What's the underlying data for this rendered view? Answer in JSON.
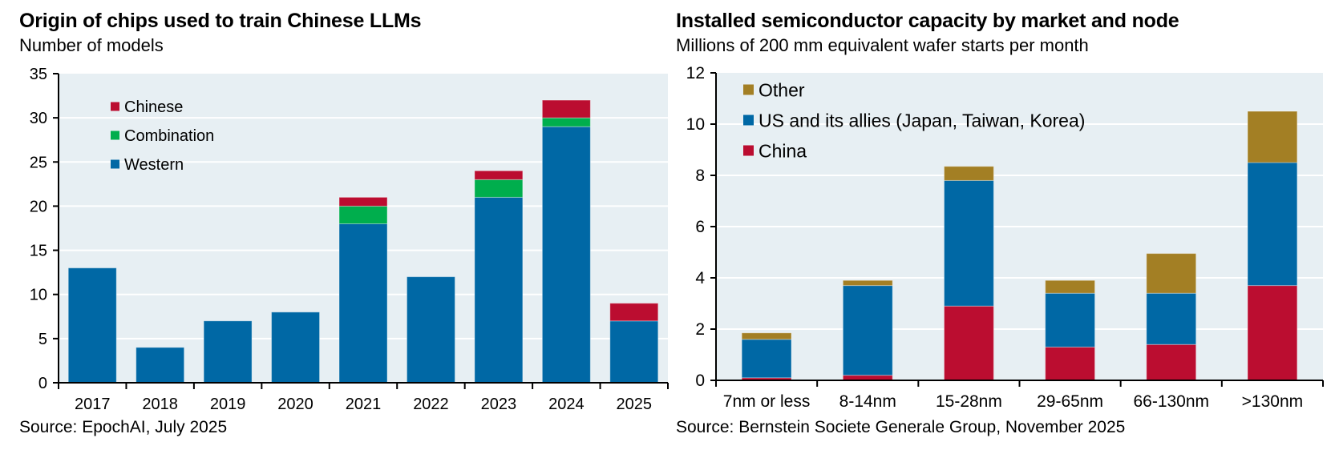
{
  "chart_data": [
    {
      "type": "bar",
      "stacked": true,
      "title": "Origin of chips used to train Chinese LLMs",
      "subtitle": "Number of models",
      "source": "Source: EpochAI, July 2025",
      "xlabel": "",
      "ylabel": "Number of models",
      "ylim": [
        0,
        35
      ],
      "yticks": [
        0,
        5,
        10,
        15,
        20,
        25,
        30,
        35
      ],
      "grid": true,
      "legend_position": "top-left",
      "categories": [
        "2017",
        "2018",
        "2019",
        "2020",
        "2021",
        "2022",
        "2023",
        "2024",
        "2025"
      ],
      "series": [
        {
          "name": "Western",
          "color": "#0068A5",
          "values": [
            13,
            4,
            7,
            8,
            18,
            12,
            21,
            29,
            7
          ]
        },
        {
          "name": "Combination",
          "color": "#00AE4D",
          "values": [
            0,
            0,
            0,
            0,
            2,
            0,
            2,
            1,
            0
          ]
        },
        {
          "name": "Chinese",
          "color": "#BB0D30",
          "values": [
            0,
            0,
            0,
            0,
            1,
            0,
            1,
            2,
            2
          ]
        }
      ],
      "legend_order": [
        "Chinese",
        "Combination",
        "Western"
      ]
    },
    {
      "type": "bar",
      "stacked": true,
      "title": "Installed semiconductor capacity by market and node",
      "subtitle": "Millions of 200 mm equivalent wafer starts per month",
      "source": "Source: Bernstein Societe Generale Group, November 2025",
      "xlabel": "",
      "ylabel": "Millions of 200 mm equivalent wafer starts per month",
      "ylim": [
        0,
        12
      ],
      "yticks": [
        0,
        2,
        4,
        6,
        8,
        10,
        12
      ],
      "grid": true,
      "legend_position": "top-left",
      "categories": [
        "7nm or less",
        "8-14nm",
        "15-28nm",
        "29-65nm",
        "66-130nm",
        ">130nm"
      ],
      "series": [
        {
          "name": "China",
          "color": "#BB0D30",
          "values": [
            0.1,
            0.2,
            2.9,
            1.3,
            1.4,
            3.7
          ]
        },
        {
          "name": "US and its allies (Japan, Taiwan, Korea)",
          "color": "#0068A5",
          "values": [
            1.5,
            3.5,
            4.9,
            2.1,
            2.0,
            4.8
          ]
        },
        {
          "name": "Other",
          "color": "#A37F24",
          "values": [
            0.25,
            0.2,
            0.55,
            0.5,
            1.55,
            2.0
          ]
        }
      ],
      "legend_order": [
        "Other",
        "US and its allies (Japan, Taiwan, Korea)",
        "China"
      ]
    }
  ],
  "colors": {
    "plot_background": "#E7EFF3",
    "gridline": "#FFFFFF",
    "axis": "#000000"
  }
}
